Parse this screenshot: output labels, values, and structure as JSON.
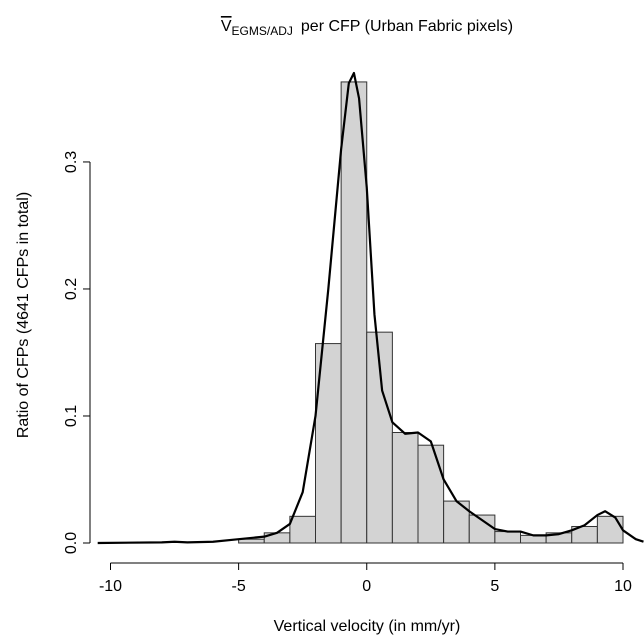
{
  "chart_data": {
    "type": "histogram",
    "title_symbol": "V",
    "title_subscript": "EGMS/ADJ",
    "title_rest": "per CFP (Urban Fabric pixels)",
    "x_label": "Vertical velocity (in mm/yr)",
    "y_label": "Ratio of CFPs (4641 CFPs in total)",
    "bins": [
      -5,
      -4,
      -3,
      -2,
      -1,
      0,
      1,
      2,
      3,
      4,
      5,
      6,
      7,
      8,
      9,
      10
    ],
    "values": [
      0.003,
      0.008,
      0.021,
      0.157,
      0.363,
      0.166,
      0.087,
      0.077,
      0.033,
      0.022,
      0.009,
      0.006,
      0.008,
      0.013,
      0.021
    ],
    "color": "#d3d3d3",
    "density": {
      "color": "#000000",
      "x": [
        -10.5,
        -8,
        -7.5,
        -7,
        -6,
        -5,
        -4,
        -3.5,
        -3,
        -2.5,
        -2,
        -1.5,
        -1,
        -0.7,
        -0.5,
        -0.3,
        0,
        0.3,
        0.6,
        1,
        1.5,
        2,
        2.5,
        3,
        3.5,
        4,
        4.5,
        5,
        5.5,
        6,
        6.5,
        7,
        7.5,
        8,
        8.5,
        9,
        9.3,
        9.7,
        10,
        10.5,
        10.8
      ],
      "values": [
        0,
        0.0005,
        0.001,
        0.0005,
        0.001,
        0.003,
        0.005,
        0.008,
        0.015,
        0.04,
        0.1,
        0.2,
        0.31,
        0.362,
        0.37,
        0.35,
        0.28,
        0.18,
        0.12,
        0.095,
        0.086,
        0.087,
        0.08,
        0.05,
        0.033,
        0.025,
        0.018,
        0.011,
        0.009,
        0.009,
        0.006,
        0.006,
        0.007,
        0.01,
        0.014,
        0.022,
        0.025,
        0.02,
        0.01,
        0.003,
        0.001
      ]
    },
    "xlim": [
      -10.8,
      10.8
    ],
    "ylim": [
      0,
      0.372
    ],
    "xticks": [
      -10,
      -5,
      0,
      5,
      10
    ],
    "yticks": [
      {
        "value": 0,
        "label": "0.0"
      },
      0.1,
      0.2,
      0.3
    ]
  }
}
